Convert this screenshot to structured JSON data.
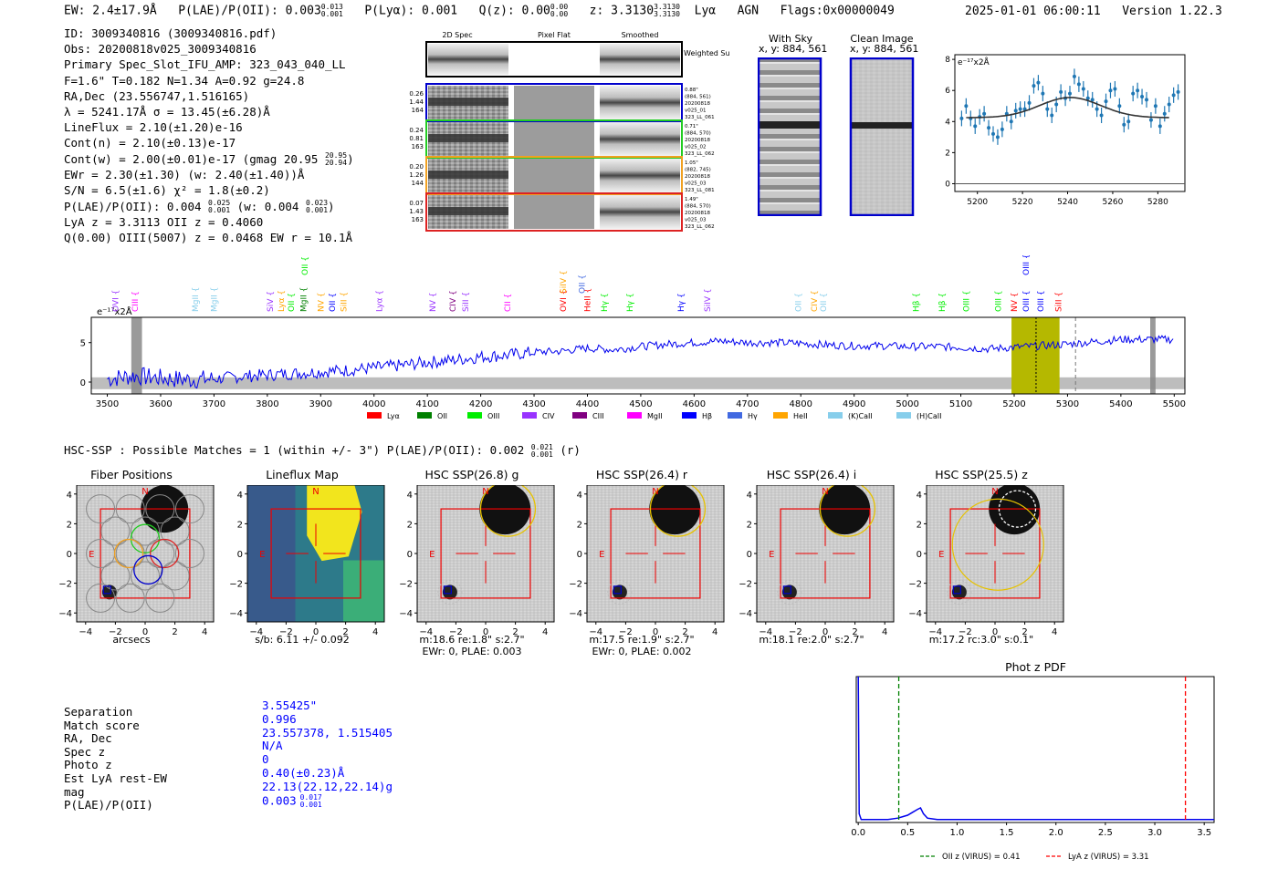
{
  "header": {
    "ew": "EW: 2.4±17.9Å",
    "plae_label": "P(LAE)/P(OII): 0.003",
    "plae_sup": "0.013",
    "plae_sub": "0.001",
    "plya": "P(Lyα): 0.001",
    "qz_label": "Q(z): 0.00",
    "qz_sup": "0.00",
    "qz_sub": "0.00",
    "z_label": "z: 3.3130",
    "z_sup": "3.3130",
    "z_sub": "3.3130",
    "line": "Lyα",
    "agn": "AGN",
    "flags": "Flags:0x00000049",
    "timestamp": "2025-01-01 06:00:11",
    "version": "Version 1.22.3"
  },
  "info": {
    "id": "ID: 3009340816 (3009340816.pdf)",
    "obs": "Obs: 20200818v025_3009340816",
    "primary": "Primary Spec_Slot_IFU_AMP: 323_043_040_LL",
    "fstats": "F=1.6\"  T=0.182  N=1.34  A=0.92  g=24.8",
    "radec": "RA,Dec (23.556747,1.516165)",
    "lambda": "λ = 5241.17Å  σ = 13.45(±6.28)Å",
    "lineflux": "LineFlux = 2.10(±1.20)e-16",
    "contn": "Cont(n) = 2.10(±0.13)e-17",
    "contw": "Cont(w) = 2.00(±0.01)e-17 (gmag 20.95",
    "contw_sup": "20.95",
    "contw_sub": "20.94",
    "ewr": "EWr = 2.30(±1.30) (w: 2.40(±1.40))Å",
    "sn": "S/N = 6.5(±1.6)  χ² = 1.8(±0.2)",
    "plae": "P(LAE)/P(OII): 0.004",
    "plae_sup": "0.025",
    "plae_sub": "0.001",
    "plae_w": "(w: 0.004",
    "plae_w_sup": "0.023",
    "plae_w_sub": "0.001",
    "lyaz": "LyA z = 3.3113  OII z = 0.4060",
    "q": "Q(0.00) OIII(5007) z = 0.0468  EW r = 10.1Å"
  },
  "cutouts": {
    "col_2d": "2D Spec",
    "col_flat": "Pixel Flat",
    "col_smooth": "Smoothed",
    "weighted": "Weighted Sum",
    "rows": [
      {
        "s1": "0.26",
        "s2": "1.44",
        "s3": "164",
        "r1": "0.88\"",
        "r2": "(884, 561)",
        "r3": "20200818",
        "r4": "v025_01",
        "r5": "323_LL_061",
        "color": "#0000cc"
      },
      {
        "s1": "0.24",
        "s2": "0.81",
        "s3": "163",
        "r1": "0.71\"",
        "r2": "(884, 570)",
        "r3": "20200818",
        "r4": "v025_02",
        "r5": "323_LL_062",
        "color": "#22cc22"
      },
      {
        "s1": "0.20",
        "s2": "1.26",
        "s3": "144",
        "r1": "1.05\"",
        "r2": "(882, 745)",
        "r3": "20200818",
        "r4": "v025_03",
        "r5": "323_LL_081",
        "color": "#f0a020"
      },
      {
        "s1": "0.07",
        "s2": "1.43",
        "s3": "163",
        "r1": "1.49\"",
        "r2": "(884, 570)",
        "r3": "20200818",
        "r4": "v025_03",
        "r5": "323_LL_062",
        "color": "#dd2222"
      }
    ],
    "with_sky": "With Sky",
    "with_sky_xy": "x, y: 884, 561",
    "clean": "Clean Image",
    "clean_xy": "x, y: 884, 561"
  },
  "zoom_chart": {
    "ylabel": "e⁻¹⁷x2Å",
    "xticks": [
      "5200",
      "5220",
      "5240",
      "5260",
      "5280"
    ],
    "yticks": [
      "0",
      "2",
      "4",
      "6",
      "8"
    ]
  },
  "spectrum": {
    "ylabel": "e⁻¹⁷x2Å",
    "xticks": [
      "3500",
      "3600",
      "3700",
      "3800",
      "3900",
      "4000",
      "4100",
      "4200",
      "4300",
      "4400",
      "4500",
      "4600",
      "4700",
      "4800",
      "4900",
      "5000",
      "5100",
      "5200",
      "5300",
      "5400",
      "5500"
    ],
    "yticks": [
      "0",
      "5"
    ],
    "legend": [
      "Lyα",
      "OII",
      "OIII",
      "CIV",
      "CIII",
      "MgII",
      "Hβ",
      "Hγ",
      "HeII",
      "(K)CaII",
      "(H)CaII"
    ],
    "legend_colors": [
      "#ff0000",
      "#008000",
      "#00ee00",
      "#9933ff",
      "#800080",
      "#ff00ff",
      "#0000ff",
      "#4169e1",
      "#ffa500",
      "#87ceeb",
      "#87ceeb"
    ],
    "lines": [
      {
        "label": "OVI",
        "wave": 3515,
        "color": "#9933ff",
        "row": 0
      },
      {
        "label": "CIII",
        "wave": 3552,
        "color": "#ff00ff",
        "row": 0
      },
      {
        "label": "MgII",
        "wave": 3665,
        "color": "#87ceeb",
        "row": 0
      },
      {
        "label": "MgII",
        "wave": 3700,
        "color": "#87ceeb",
        "row": 0
      },
      {
        "label": "SiV",
        "wave": 3805,
        "color": "#9933ff",
        "row": 0
      },
      {
        "label": "Lyα",
        "wave": 3826,
        "color": "#ffa500",
        "row": 0
      },
      {
        "label": "OII",
        "wave": 3845,
        "color": "#00ee00",
        "row": 0
      },
      {
        "label": "MgII",
        "wave": 3868,
        "color": "#008000",
        "row": 0
      },
      {
        "label": "OII",
        "wave": 3870,
        "color": "#00ee00",
        "row": 2
      },
      {
        "label": "NV",
        "wave": 3900,
        "color": "#ffa500",
        "row": 0
      },
      {
        "label": "OII",
        "wave": 3922,
        "color": "#0000ff",
        "row": 0
      },
      {
        "label": "SiII",
        "wave": 3943,
        "color": "#ffa500",
        "row": 0
      },
      {
        "label": "Lyα",
        "wave": 4010,
        "color": "#9933ff",
        "row": 0
      },
      {
        "label": "NV",
        "wave": 4110,
        "color": "#9933ff",
        "row": 0
      },
      {
        "label": "CIV",
        "wave": 4148,
        "color": "#800080",
        "row": 0
      },
      {
        "label": "SiII",
        "wave": 4172,
        "color": "#9933ff",
        "row": 0
      },
      {
        "label": "CII",
        "wave": 4250,
        "color": "#ff00ff",
        "row": 0
      },
      {
        "label": "OVI",
        "wave": 4355,
        "color": "#ff0000",
        "row": 0
      },
      {
        "label": "SiIV",
        "wave": 4355,
        "color": "#ffa500",
        "row": 1
      },
      {
        "label": "HeII",
        "wave": 4400,
        "color": "#ff0000",
        "row": 0
      },
      {
        "label": "OII",
        "wave": 4390,
        "color": "#4169e1",
        "row": 1
      },
      {
        "label": "Hγ",
        "wave": 4432,
        "color": "#00ee00",
        "row": 0
      },
      {
        "label": "Hγ",
        "wave": 4480,
        "color": "#00ee00",
        "row": 0
      },
      {
        "label": "Hγ",
        "wave": 4575,
        "color": "#0000ff",
        "row": 0
      },
      {
        "label": "SiIV",
        "wave": 4625,
        "color": "#9933ff",
        "row": 0
      },
      {
        "label": "OII",
        "wave": 4795,
        "color": "#87ceeb",
        "row": 0
      },
      {
        "label": "CIV",
        "wave": 4825,
        "color": "#ffa500",
        "row": 0
      },
      {
        "label": "OII",
        "wave": 4842,
        "color": "#87ceeb",
        "row": 0
      },
      {
        "label": "Hβ",
        "wave": 5016,
        "color": "#00ee00",
        "row": 0
      },
      {
        "label": "Hβ",
        "wave": 5065,
        "color": "#00ee00",
        "row": 0
      },
      {
        "label": "OIII",
        "wave": 5110,
        "color": "#00ee00",
        "row": 0
      },
      {
        "label": "OIII",
        "wave": 5170,
        "color": "#00ee00",
        "row": 0
      },
      {
        "label": "NV",
        "wave": 5200,
        "color": "#ff0000",
        "row": 0
      },
      {
        "label": "OIII",
        "wave": 5222,
        "color": "#0000ff",
        "row": 0
      },
      {
        "label": "OIII",
        "wave": 5222,
        "color": "#0000ff",
        "row": 2
      },
      {
        "label": "OIII",
        "wave": 5250,
        "color": "#0000ff",
        "row": 0
      },
      {
        "label": "SiII",
        "wave": 5283,
        "color": "#ff0000",
        "row": 0
      }
    ]
  },
  "hsc": {
    "heading": "HSC-SSP : Possible Matches = 1 (within +/- 3\")  P(LAE)/P(OII): 0.002",
    "heading_sup": "0.021",
    "heading_sub": "0.001",
    "heading_band": "(r)",
    "panels": [
      {
        "title": "Fiber Positions",
        "cap1": "arcsecs",
        "cap2": ""
      },
      {
        "title": "Lineflux Map",
        "cap1": "s/b: 6.11 +/- 0.092",
        "cap2": ""
      },
      {
        "title": "HSC SSP(26.8) g",
        "cap1": "m:18.6  re:1.8\"  s:2.7\"",
        "cap2": "EWr: 0, PLAE: 0.003"
      },
      {
        "title": "HSC SSP(26.4) r",
        "cap1": "m:17.5  re:1.9\"  s:2.7\"",
        "cap2": "EWr: 0, PLAE: 0.002"
      },
      {
        "title": "HSC SSP(26.4) i",
        "cap1": "m:18.1  re:2.0\"  s:2.7\"",
        "cap2": ""
      },
      {
        "title": "HSC SSP(25.5) z",
        "cap1": "m:17.2  rc:3.0\"  s:0.1\"",
        "cap2": ""
      }
    ],
    "ticks": [
      "−4",
      "−2",
      "0",
      "2",
      "4"
    ],
    "n": "N",
    "e": "E"
  },
  "summary": {
    "labels": [
      "Separation",
      "Match score",
      "RA, Dec",
      "Spec z",
      "Photo z",
      "Est LyA rest-EW",
      "mag",
      "P(LAE)/P(OII)"
    ],
    "values": [
      "3.55425\"",
      "0.996",
      "23.557378, 1.515405",
      "N/A",
      "0",
      "0.40(±0.23)Å",
      "22.13(22.12,22.14)g",
      "0.003"
    ],
    "plae_sup": "0.017",
    "plae_sub": "0.001"
  },
  "photz": {
    "title": "Phot z PDF",
    "xticks": [
      "0.0",
      "0.5",
      "1.0",
      "1.5",
      "2.0",
      "2.5",
      "3.0",
      "3.5"
    ],
    "legend_oii": "OII z (VIRUS) = 0.41",
    "legend_lya": "LyA z (VIRUS) = 3.31"
  },
  "chart_data": [
    {
      "type": "line",
      "title": "",
      "xlabel": "",
      "ylabel": "e-17 x2Å",
      "xlim": [
        5190,
        5292
      ],
      "ylim": [
        -0.5,
        8.3
      ],
      "series": [
        {
          "name": "data",
          "x": [
            5193,
            5195,
            5197,
            5199,
            5201,
            5203,
            5205,
            5207,
            5209,
            5211,
            5213,
            5215,
            5217,
            5219,
            5221,
            5223,
            5225,
            5227,
            5229,
            5231,
            5233,
            5235,
            5237,
            5239,
            5241,
            5243,
            5245,
            5247,
            5249,
            5251,
            5253,
            5255,
            5257,
            5259,
            5261,
            5263,
            5265,
            5267,
            5269,
            5271,
            5273,
            5275,
            5277,
            5279,
            5281,
            5283,
            5285,
            5287,
            5289
          ],
          "values": [
            4.2,
            5.0,
            4.2,
            3.7,
            4.3,
            4.5,
            3.6,
            3.2,
            3.0,
            3.5,
            4.5,
            4.0,
            4.7,
            4.8,
            4.8,
            5.2,
            6.3,
            6.5,
            5.8,
            4.8,
            4.4,
            5.1,
            5.9,
            5.5,
            5.8,
            6.9,
            6.4,
            6.1,
            5.5,
            5.4,
            4.8,
            4.4,
            5.3,
            6.0,
            6.1,
            5.0,
            3.8,
            4.0,
            5.8,
            6.0,
            5.6,
            5.4,
            4.1,
            5.0,
            3.7,
            4.5,
            5.1,
            5.7,
            5.9
          ],
          "errors": [
            0.5,
            0.5,
            0.5,
            0.5,
            0.5,
            0.5,
            0.5,
            0.5,
            0.5,
            0.5,
            0.5,
            0.5,
            0.5,
            0.5,
            0.5,
            0.5,
            0.5,
            0.5,
            0.5,
            0.5,
            0.5,
            0.5,
            0.5,
            0.5,
            0.5,
            0.5,
            0.5,
            0.5,
            0.5,
            0.5,
            0.5,
            0.5,
            0.5,
            0.5,
            0.5,
            0.5,
            0.5,
            0.5,
            0.5,
            0.5,
            0.5,
            0.5,
            0.5,
            0.5,
            0.5,
            0.5,
            0.5,
            0.5,
            0.5
          ]
        },
        {
          "name": "gaussian fit",
          "model": "gaussian",
          "center": 5241.17,
          "sigma": 13.45,
          "amplitude": 1.3,
          "continuum": 4.25
        }
      ]
    },
    {
      "type": "line",
      "title": "",
      "ylabel": "e-17 x2Å",
      "xlim": [
        3470,
        5520
      ],
      "ylim": [
        -1.5,
        8.2
      ],
      "series": [
        {
          "name": "spectrum",
          "x": [
            3500,
            3550,
            3600,
            3650,
            3700,
            3750,
            3800,
            3850,
            3900,
            3950,
            4000,
            4050,
            4100,
            4150,
            4200,
            4250,
            4300,
            4350,
            4400,
            4450,
            4500,
            4550,
            4600,
            4650,
            4700,
            4750,
            4800,
            4850,
            4900,
            4950,
            5000,
            5050,
            5100,
            5150,
            5200,
            5250,
            5300,
            5350,
            5400,
            5450,
            5500
          ],
          "values": [
            0.4,
            0.8,
            0.5,
            0.3,
            0.4,
            0.7,
            0.9,
            1.1,
            1.3,
            1.5,
            1.8,
            2.1,
            2.5,
            2.8,
            3.2,
            3.4,
            3.8,
            3.9,
            4.3,
            4.1,
            4.5,
            4.8,
            5.0,
            5.2,
            5.0,
            5.0,
            4.9,
            4.7,
            4.6,
            4.6,
            4.5,
            4.5,
            4.4,
            4.2,
            4.4,
            4.6,
            4.8,
            5.1,
            5.4,
            5.4,
            5.4
          ]
        },
        {
          "name": "sky/noise",
          "values_approx": 0
        }
      ],
      "highlight_regions": [
        [
          3545,
          3565
        ],
        [
          5195,
          5285
        ],
        [
          5455,
          5465
        ]
      ],
      "markers": [
        {
          "x": 5241,
          "style": "dotted"
        },
        {
          "x": 5315,
          "style": "dashed"
        }
      ]
    },
    {
      "type": "line",
      "title": "Phot z PDF",
      "xlim": [
        -0.02,
        3.6
      ],
      "ylim": [
        0,
        1
      ],
      "series": [
        {
          "name": "pdf",
          "x": [
            0.0,
            0.01,
            0.03,
            0.1,
            0.2,
            0.3,
            0.4,
            0.45,
            0.5,
            0.55,
            0.6,
            0.63,
            0.66,
            0.7,
            0.8,
            1.0,
            1.5,
            2.0,
            2.5,
            3.0,
            3.5,
            3.6
          ],
          "values": [
            1.0,
            0.06,
            0.02,
            0.02,
            0.02,
            0.02,
            0.03,
            0.04,
            0.05,
            0.07,
            0.09,
            0.1,
            0.06,
            0.03,
            0.02,
            0.02,
            0.02,
            0.02,
            0.02,
            0.02,
            0.02,
            0.02
          ]
        }
      ],
      "vlines": [
        {
          "x": 0.41,
          "label": "OII z (VIRUS) = 0.41",
          "color": "#008000"
        },
        {
          "x": 3.31,
          "label": "LyA z (VIRUS) = 3.31",
          "color": "#ff0000"
        }
      ]
    }
  ]
}
